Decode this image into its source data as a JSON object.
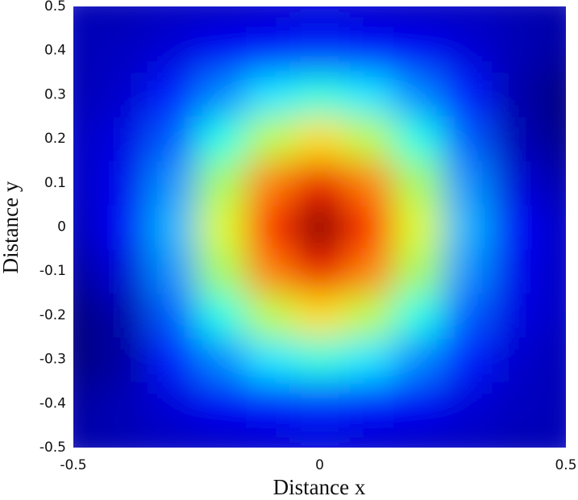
{
  "chart_data": {
    "type": "contourf",
    "colormap": "jet",
    "xlabel": "Distance x",
    "ylabel": "Distance y",
    "xlim": [
      -0.5,
      0.5
    ],
    "ylim": [
      -0.5,
      0.5
    ],
    "xticks": [
      -0.5,
      0,
      0.5
    ],
    "yticks": [
      -0.5,
      -0.4,
      -0.3,
      -0.2,
      -0.1,
      0,
      0.1,
      0.2,
      0.3,
      0.4,
      0.5
    ],
    "x": [
      -0.5,
      -0.4,
      -0.3,
      -0.2,
      -0.1,
      0,
      0.1,
      0.2,
      0.3,
      0.4,
      0.5
    ],
    "y": [
      -0.5,
      -0.4,
      -0.3,
      -0.2,
      -0.1,
      0,
      0.1,
      0.2,
      0.3,
      0.4,
      0.5
    ],
    "z": [
      [
        0.11,
        0.12,
        0.13,
        0.13,
        0.14,
        0.15,
        0.14,
        0.13,
        0.13,
        0.12,
        0.12
      ],
      [
        0.1,
        0.12,
        0.15,
        0.18,
        0.2,
        0.22,
        0.2,
        0.18,
        0.15,
        0.13,
        0.12
      ],
      [
        0.07,
        0.1,
        0.21,
        0.31,
        0.4,
        0.45,
        0.4,
        0.31,
        0.21,
        0.14,
        0.12
      ],
      [
        0.07,
        0.11,
        0.27,
        0.44,
        0.59,
        0.68,
        0.59,
        0.44,
        0.27,
        0.16,
        0.13
      ],
      [
        0.1,
        0.15,
        0.32,
        0.57,
        0.77,
        0.9,
        0.77,
        0.57,
        0.32,
        0.17,
        0.13
      ],
      [
        0.12,
        0.18,
        0.35,
        0.62,
        0.85,
        1.0,
        0.85,
        0.62,
        0.35,
        0.18,
        0.13
      ],
      [
        0.13,
        0.17,
        0.32,
        0.57,
        0.77,
        0.9,
        0.77,
        0.57,
        0.32,
        0.15,
        0.11
      ],
      [
        0.13,
        0.16,
        0.27,
        0.44,
        0.59,
        0.68,
        0.59,
        0.44,
        0.27,
        0.12,
        0.08
      ],
      [
        0.12,
        0.14,
        0.21,
        0.31,
        0.4,
        0.45,
        0.4,
        0.31,
        0.21,
        0.11,
        0.07
      ],
      [
        0.12,
        0.13,
        0.15,
        0.18,
        0.2,
        0.22,
        0.2,
        0.18,
        0.15,
        0.12,
        0.1
      ],
      [
        0.12,
        0.12,
        0.13,
        0.13,
        0.14,
        0.15,
        0.14,
        0.13,
        0.13,
        0.12,
        0.11
      ]
    ]
  }
}
